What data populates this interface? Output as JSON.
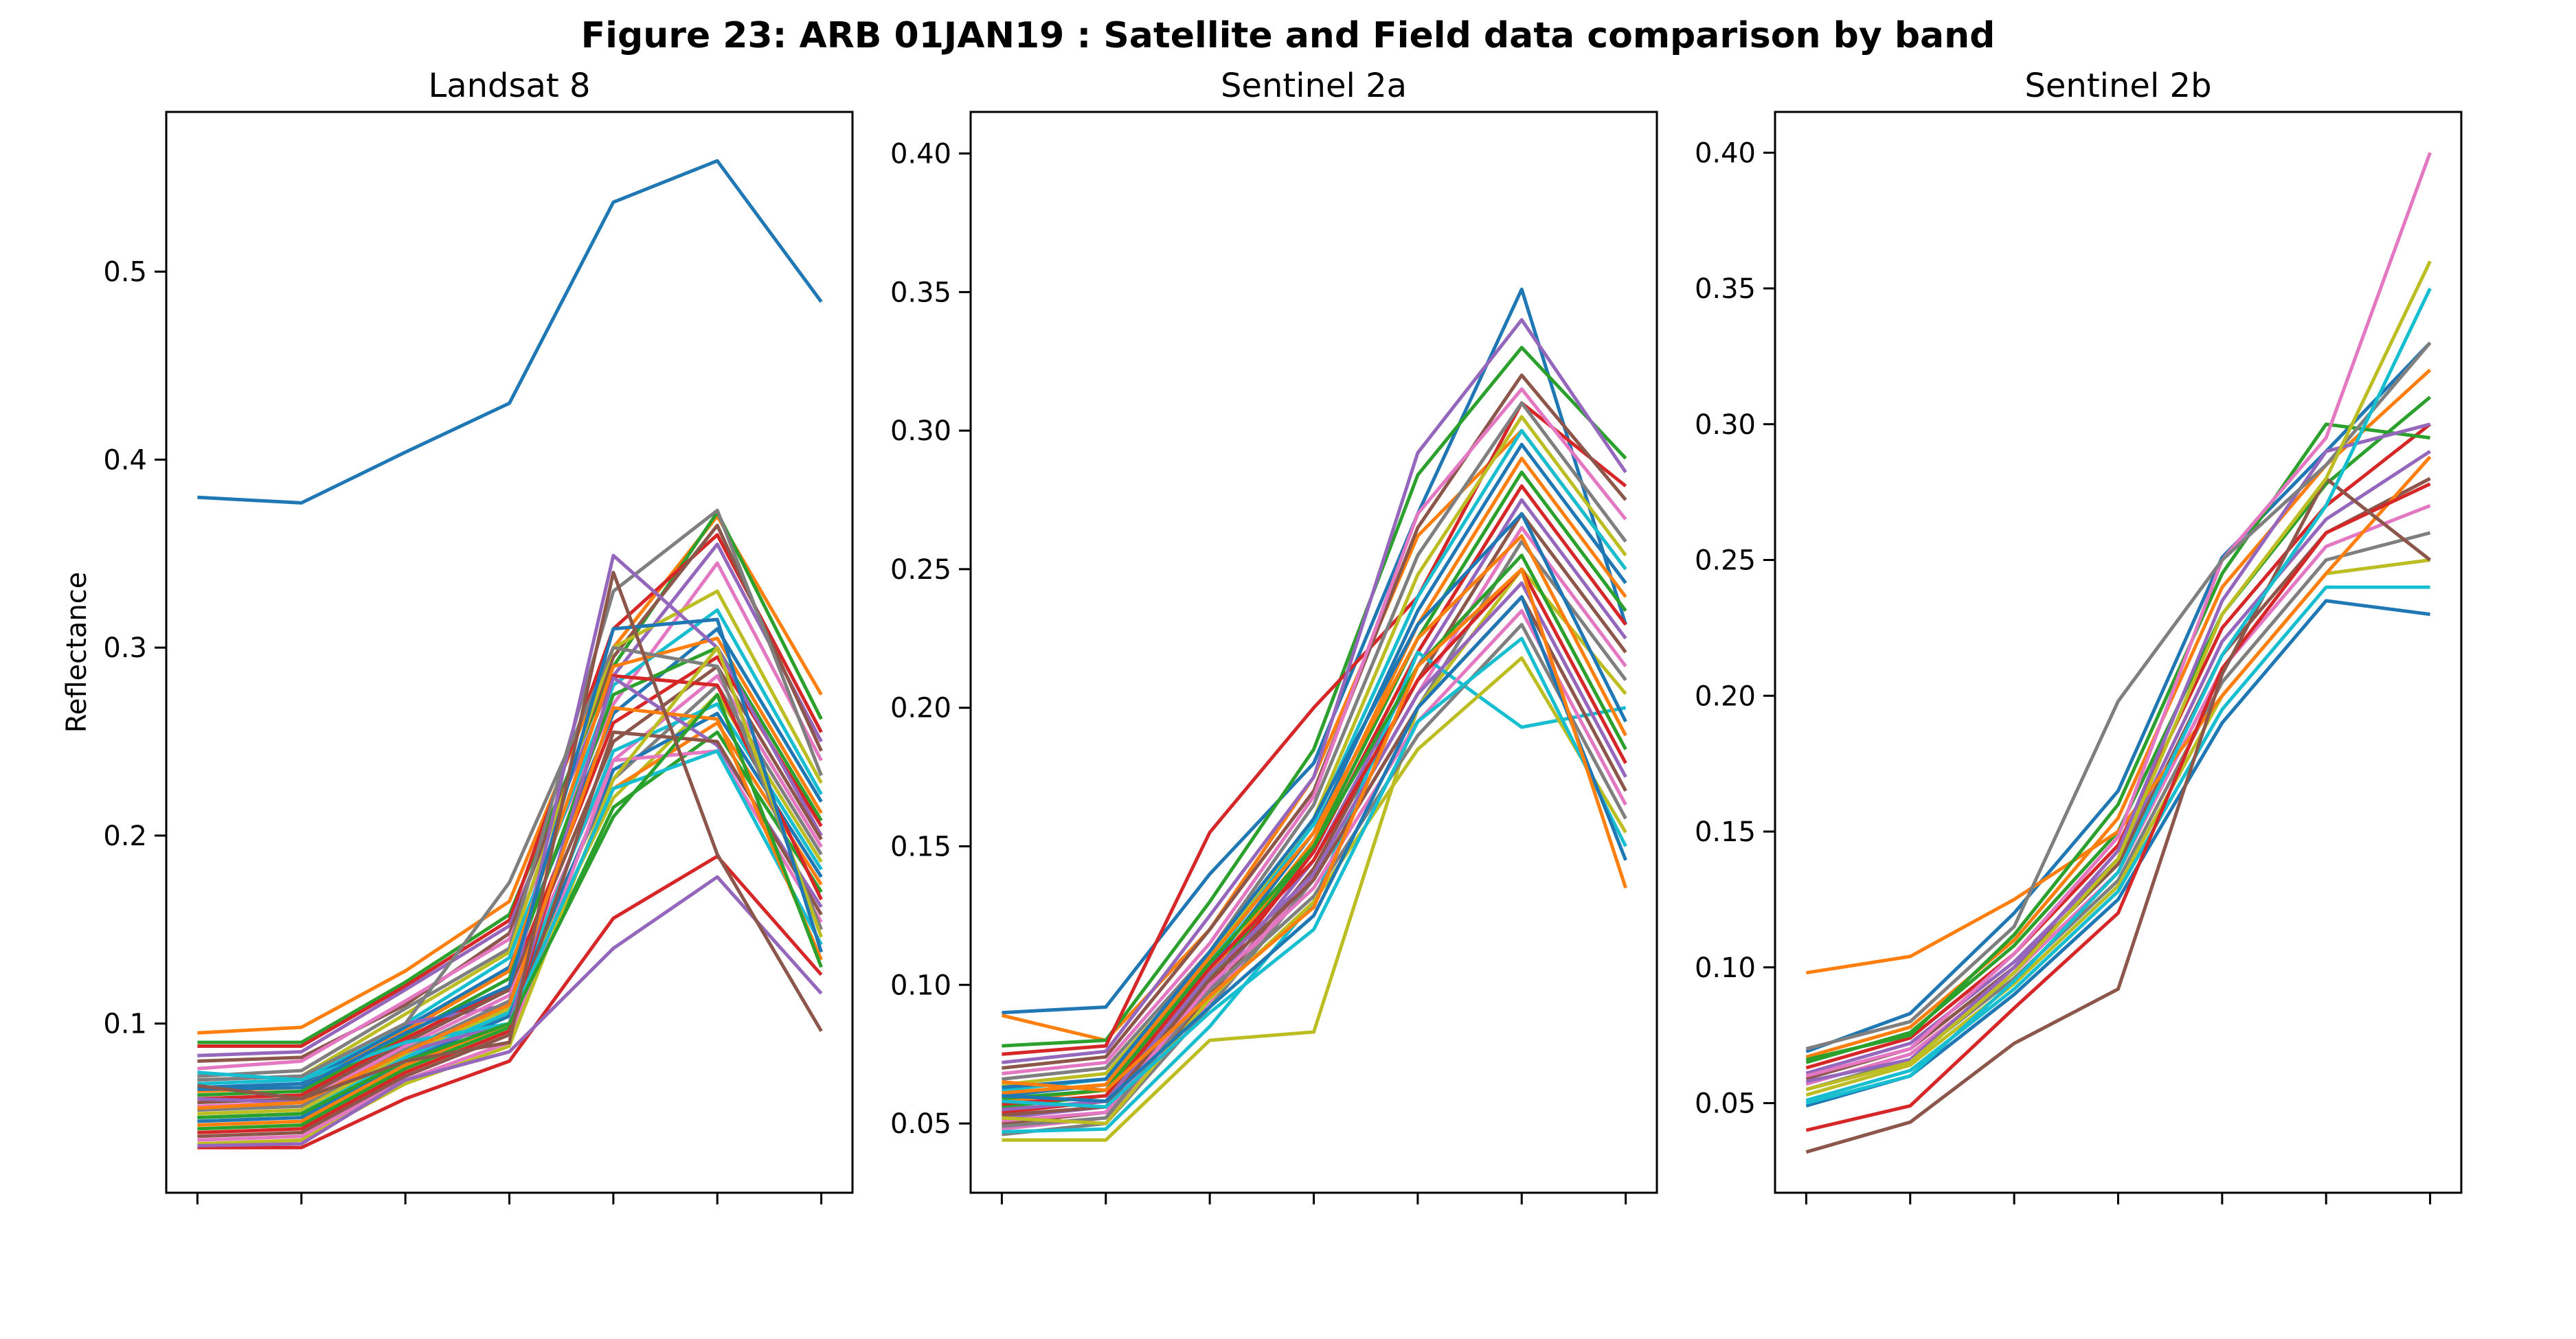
{
  "title": "Figure 23: ARB 01JAN19 : Satellite and Field data comparison by band",
  "chart_data": [
    {
      "type": "line",
      "title": "Landsat 8",
      "ylabel": "Reflectance",
      "xlabel": "",
      "x": [
        1,
        2,
        3,
        4,
        5,
        6,
        7
      ],
      "xlim": [
        0.7,
        7.3
      ],
      "ylim": [
        0.01,
        0.585
      ],
      "yticks": [
        0.1,
        0.2,
        0.3,
        0.4,
        0.5
      ],
      "ytick_labels": [
        "0.1",
        "0.2",
        "0.3",
        "0.4",
        "0.5"
      ],
      "grid": false,
      "series": [
        {
          "values": [
            0.38,
            0.377,
            0.404,
            0.43,
            0.537,
            0.559,
            0.484
          ]
        },
        {
          "values": [
            0.095,
            0.098,
            0.128,
            0.165,
            0.3,
            0.37,
            0.275
          ]
        },
        {
          "values": [
            0.09,
            0.09,
            0.122,
            0.158,
            0.29,
            0.372,
            0.262
          ]
        },
        {
          "values": [
            0.088,
            0.088,
            0.12,
            0.155,
            0.31,
            0.36,
            0.255
          ]
        },
        {
          "values": [
            0.083,
            0.085,
            0.118,
            0.152,
            0.285,
            0.355,
            0.25
          ]
        },
        {
          "values": [
            0.08,
            0.082,
            0.11,
            0.148,
            0.295,
            0.365,
            0.245
          ]
        },
        {
          "values": [
            0.076,
            0.08,
            0.112,
            0.145,
            0.27,
            0.345,
            0.24
          ]
        },
        {
          "values": [
            0.072,
            0.075,
            0.108,
            0.14,
            0.33,
            0.373,
            0.232
          ]
        },
        {
          "values": [
            0.07,
            0.072,
            0.105,
            0.138,
            0.3,
            0.33,
            0.228
          ]
        },
        {
          "values": [
            0.068,
            0.07,
            0.1,
            0.135,
            0.28,
            0.32,
            0.222
          ]
        },
        {
          "values": [
            0.066,
            0.068,
            0.098,
            0.13,
            0.265,
            0.31,
            0.218
          ]
        },
        {
          "values": [
            0.064,
            0.066,
            0.096,
            0.128,
            0.29,
            0.305,
            0.212
          ]
        },
        {
          "values": [
            0.062,
            0.064,
            0.094,
            0.124,
            0.275,
            0.3,
            0.208
          ]
        },
        {
          "values": [
            0.06,
            0.062,
            0.092,
            0.12,
            0.26,
            0.295,
            0.205
          ]
        },
        {
          "values": [
            0.07,
            0.072,
            0.1,
            0.11,
            0.349,
            0.3,
            0.2
          ]
        },
        {
          "values": [
            0.058,
            0.06,
            0.09,
            0.118,
            0.25,
            0.29,
            0.198
          ]
        },
        {
          "values": [
            0.056,
            0.058,
            0.088,
            0.115,
            0.24,
            0.285,
            0.194
          ]
        },
        {
          "values": [
            0.054,
            0.056,
            0.086,
            0.112,
            0.23,
            0.28,
            0.19
          ]
        },
        {
          "values": [
            0.052,
            0.054,
            0.084,
            0.108,
            0.22,
            0.275,
            0.186
          ]
        },
        {
          "values": [
            0.05,
            0.052,
            0.082,
            0.106,
            0.245,
            0.27,
            0.182
          ]
        },
        {
          "values": [
            0.048,
            0.05,
            0.08,
            0.104,
            0.235,
            0.265,
            0.178
          ]
        },
        {
          "values": [
            0.046,
            0.048,
            0.078,
            0.1,
            0.225,
            0.26,
            0.174
          ]
        },
        {
          "values": [
            0.044,
            0.046,
            0.076,
            0.098,
            0.215,
            0.255,
            0.17
          ]
        },
        {
          "values": [
            0.042,
            0.044,
            0.074,
            0.096,
            0.285,
            0.28,
            0.166
          ]
        },
        {
          "values": [
            0.06,
            0.058,
            0.085,
            0.1,
            0.284,
            0.248,
            0.162
          ]
        },
        {
          "values": [
            0.04,
            0.042,
            0.072,
            0.094,
            0.255,
            0.25,
            0.158
          ]
        },
        {
          "values": [
            0.038,
            0.04,
            0.07,
            0.09,
            0.24,
            0.245,
            0.154
          ]
        },
        {
          "values": [
            0.07,
            0.072,
            0.1,
            0.175,
            0.3,
            0.29,
            0.15
          ]
        },
        {
          "values": [
            0.036,
            0.038,
            0.068,
            0.088,
            0.23,
            0.3,
            0.146
          ]
        },
        {
          "values": [
            0.074,
            0.07,
            0.09,
            0.1,
            0.225,
            0.245,
            0.142
          ]
        },
        {
          "values": [
            0.065,
            0.066,
            0.095,
            0.12,
            0.31,
            0.315,
            0.138
          ]
        },
        {
          "values": [
            0.055,
            0.058,
            0.085,
            0.11,
            0.268,
            0.262,
            0.134
          ]
        },
        {
          "values": [
            0.05,
            0.052,
            0.08,
            0.1,
            0.21,
            0.275,
            0.13
          ]
        },
        {
          "values": [
            0.034,
            0.034,
            0.06,
            0.08,
            0.156,
            0.189,
            0.126
          ]
        },
        {
          "values": [
            0.035,
            0.036,
            0.07,
            0.085,
            0.14,
            0.178,
            0.116
          ]
        },
        {
          "values": [
            0.067,
            0.06,
            0.08,
            0.09,
            0.34,
            0.19,
            0.096
          ]
        }
      ]
    },
    {
      "type": "line",
      "title": "Sentinel 2a",
      "ylabel": "",
      "xlabel": "",
      "x": [
        1,
        2,
        3,
        4,
        5,
        6,
        7
      ],
      "xlim": [
        0.7,
        7.3
      ],
      "ylim": [
        0.025,
        0.415
      ],
      "yticks": [
        0.05,
        0.1,
        0.15,
        0.2,
        0.25,
        0.3,
        0.35,
        0.4
      ],
      "ytick_labels": [
        "0.05",
        "0.10",
        "0.15",
        "0.20",
        "0.25",
        "0.30",
        "0.35",
        "0.40"
      ],
      "grid": false,
      "series": [
        {
          "values": [
            0.09,
            0.092,
            0.14,
            0.18,
            0.27,
            0.351,
            0.23
          ]
        },
        {
          "values": [
            0.089,
            0.08,
            0.12,
            0.175,
            0.262,
            0.3,
            0.25
          ]
        },
        {
          "values": [
            0.078,
            0.08,
            0.13,
            0.185,
            0.284,
            0.33,
            0.29
          ]
        },
        {
          "values": [
            0.075,
            0.078,
            0.155,
            0.2,
            0.24,
            0.31,
            0.28
          ]
        },
        {
          "values": [
            0.072,
            0.076,
            0.125,
            0.175,
            0.292,
            0.34,
            0.285
          ]
        },
        {
          "values": [
            0.07,
            0.074,
            0.12,
            0.17,
            0.265,
            0.32,
            0.275
          ]
        },
        {
          "values": [
            0.068,
            0.072,
            0.115,
            0.168,
            0.27,
            0.315,
            0.268
          ]
        },
        {
          "values": [
            0.066,
            0.07,
            0.112,
            0.165,
            0.255,
            0.31,
            0.26
          ]
        },
        {
          "values": [
            0.064,
            0.068,
            0.11,
            0.16,
            0.248,
            0.305,
            0.255
          ]
        },
        {
          "values": [
            0.062,
            0.066,
            0.108,
            0.158,
            0.24,
            0.3,
            0.25
          ]
        },
        {
          "values": [
            0.06,
            0.064,
            0.106,
            0.155,
            0.235,
            0.295,
            0.245
          ]
        },
        {
          "values": [
            0.058,
            0.062,
            0.104,
            0.152,
            0.23,
            0.29,
            0.24
          ]
        },
        {
          "values": [
            0.056,
            0.06,
            0.102,
            0.15,
            0.225,
            0.285,
            0.235
          ]
        },
        {
          "values": [
            0.054,
            0.058,
            0.1,
            0.148,
            0.22,
            0.28,
            0.23
          ]
        },
        {
          "values": [
            0.052,
            0.056,
            0.098,
            0.145,
            0.215,
            0.275,
            0.225
          ]
        },
        {
          "values": [
            0.05,
            0.054,
            0.096,
            0.142,
            0.21,
            0.27,
            0.22
          ]
        },
        {
          "values": [
            0.048,
            0.052,
            0.094,
            0.14,
            0.205,
            0.265,
            0.215
          ]
        },
        {
          "values": [
            0.046,
            0.05,
            0.092,
            0.138,
            0.2,
            0.26,
            0.21
          ]
        },
        {
          "values": [
            0.044,
            0.044,
            0.08,
            0.083,
            0.2,
            0.25,
            0.205
          ]
        },
        {
          "values": [
            0.047,
            0.048,
            0.085,
            0.13,
            0.22,
            0.193,
            0.2
          ]
        },
        {
          "values": [
            0.063,
            0.066,
            0.112,
            0.16,
            0.23,
            0.27,
            0.195
          ]
        },
        {
          "values": [
            0.061,
            0.064,
            0.11,
            0.155,
            0.225,
            0.262,
            0.19
          ]
        },
        {
          "values": [
            0.059,
            0.062,
            0.108,
            0.15,
            0.215,
            0.255,
            0.185
          ]
        },
        {
          "values": [
            0.057,
            0.06,
            0.106,
            0.145,
            0.21,
            0.25,
            0.18
          ]
        },
        {
          "values": [
            0.055,
            0.058,
            0.104,
            0.14,
            0.205,
            0.245,
            0.175
          ]
        },
        {
          "values": [
            0.053,
            0.056,
            0.102,
            0.138,
            0.2,
            0.24,
            0.17
          ]
        },
        {
          "values": [
            0.051,
            0.054,
            0.1,
            0.135,
            0.195,
            0.235,
            0.165
          ]
        },
        {
          "values": [
            0.049,
            0.052,
            0.098,
            0.132,
            0.19,
            0.23,
            0.16
          ]
        },
        {
          "values": [
            0.052,
            0.05,
            0.095,
            0.13,
            0.185,
            0.218,
            0.155
          ]
        },
        {
          "values": [
            0.058,
            0.056,
            0.09,
            0.12,
            0.195,
            0.225,
            0.15
          ]
        },
        {
          "values": [
            0.06,
            0.058,
            0.092,
            0.125,
            0.2,
            0.24,
            0.145
          ]
        },
        {
          "values": [
            0.065,
            0.062,
            0.096,
            0.128,
            0.215,
            0.25,
            0.135
          ]
        }
      ]
    },
    {
      "type": "line",
      "title": "Sentinel 2b",
      "ylabel": "",
      "xlabel": "",
      "x": [
        1,
        2,
        3,
        4,
        5,
        6,
        7
      ],
      "xlim": [
        0.7,
        7.3
      ],
      "ylim": [
        0.017,
        0.415
      ],
      "yticks": [
        0.05,
        0.1,
        0.15,
        0.2,
        0.25,
        0.3,
        0.35,
        0.4
      ],
      "ytick_labels": [
        "0.05",
        "0.10",
        "0.15",
        "0.20",
        "0.25",
        "0.30",
        "0.35",
        "0.40"
      ],
      "grid": false,
      "series": [
        {
          "values": [
            0.069,
            0.083,
            0.12,
            0.165,
            0.251,
            0.29,
            0.33
          ]
        },
        {
          "values": [
            0.067,
            0.078,
            0.11,
            0.155,
            0.24,
            0.285,
            0.32
          ]
        },
        {
          "values": [
            0.065,
            0.076,
            0.108,
            0.15,
            0.23,
            0.278,
            0.31
          ]
        },
        {
          "values": [
            0.063,
            0.074,
            0.105,
            0.145,
            0.225,
            0.27,
            0.3
          ]
        },
        {
          "values": [
            0.061,
            0.072,
            0.102,
            0.14,
            0.22,
            0.265,
            0.29
          ]
        },
        {
          "values": [
            0.059,
            0.07,
            0.1,
            0.138,
            0.215,
            0.26,
            0.28
          ]
        },
        {
          "values": [
            0.057,
            0.068,
            0.098,
            0.135,
            0.21,
            0.255,
            0.27
          ]
        },
        {
          "values": [
            0.055,
            0.066,
            0.096,
            0.132,
            0.205,
            0.25,
            0.26
          ]
        },
        {
          "values": [
            0.053,
            0.064,
            0.094,
            0.13,
            0.2,
            0.245,
            0.25
          ]
        },
        {
          "values": [
            0.051,
            0.062,
            0.092,
            0.128,
            0.195,
            0.24,
            0.24
          ]
        },
        {
          "values": [
            0.049,
            0.06,
            0.09,
            0.125,
            0.19,
            0.235,
            0.23
          ]
        },
        {
          "values": [
            0.098,
            0.104,
            0.125,
            0.15,
            0.2,
            0.245,
            0.288
          ]
        },
        {
          "values": [
            0.066,
            0.075,
            0.112,
            0.16,
            0.245,
            0.3,
            0.295
          ]
        },
        {
          "values": [
            0.04,
            0.049,
            0.085,
            0.12,
            0.21,
            0.26,
            0.278
          ]
        },
        {
          "values": [
            0.058,
            0.066,
            0.1,
            0.143,
            0.235,
            0.29,
            0.3
          ]
        },
        {
          "values": [
            0.032,
            0.043,
            0.072,
            0.092,
            0.208,
            0.28,
            0.25
          ]
        },
        {
          "values": [
            0.06,
            0.07,
            0.105,
            0.148,
            0.25,
            0.295,
            0.4
          ]
        },
        {
          "values": [
            0.07,
            0.08,
            0.115,
            0.198,
            0.25,
            0.285,
            0.33
          ]
        },
        {
          "values": [
            0.055,
            0.065,
            0.098,
            0.14,
            0.23,
            0.28,
            0.36
          ]
        },
        {
          "values": [
            0.05,
            0.06,
            0.095,
            0.135,
            0.215,
            0.27,
            0.35
          ]
        }
      ]
    }
  ]
}
